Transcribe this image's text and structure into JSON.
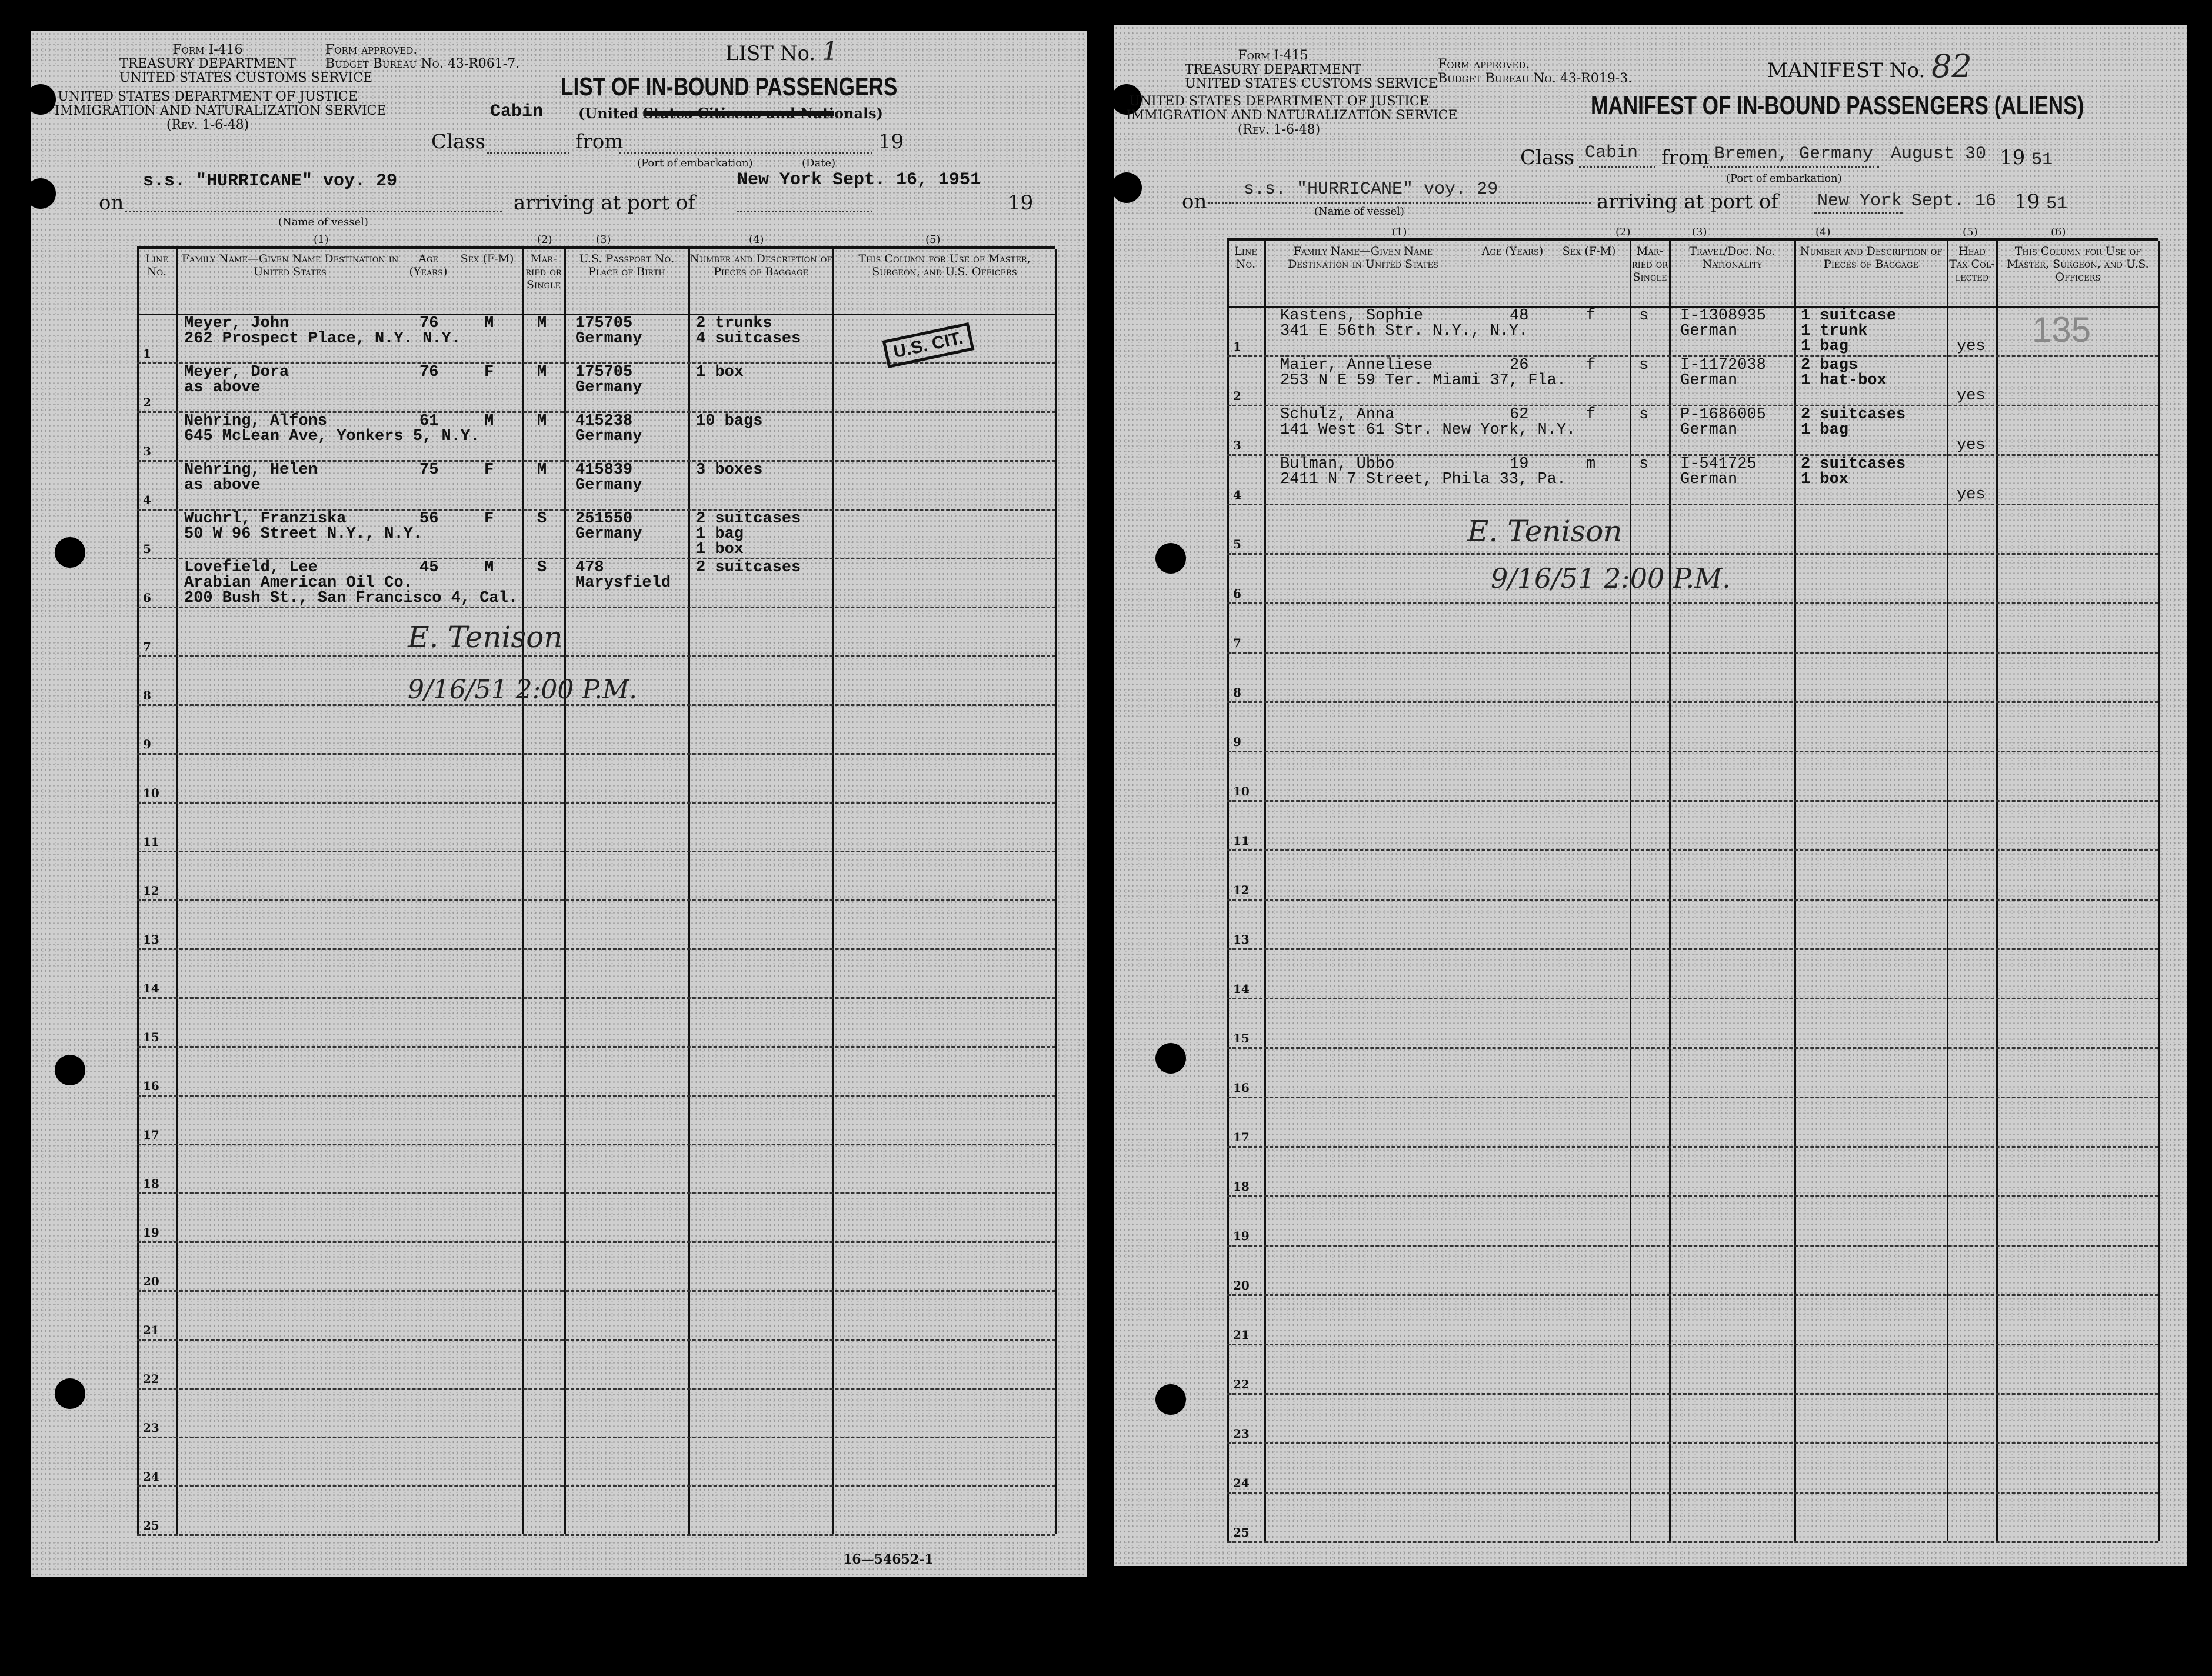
{
  "left": {
    "form_no": "Form I-416",
    "dept1": "TREASURY DEPARTMENT",
    "dept2": "UNITED STATES CUSTOMS SERVICE",
    "dept3": "UNITED STATES DEPARTMENT OF JUSTICE",
    "dept4": "IMMIGRATION AND NATURALIZATION SERVICE",
    "rev": "(Rev. 1-6-48)",
    "approved": "Form approved.",
    "budget": "Budget Bureau No. 43-R061-7.",
    "list_label": "LIST No.",
    "list_no": "1",
    "title": "LIST OF IN-BOUND PASSENGERS",
    "subtitle_prefix": "(United ",
    "subtitle_struck": "States Citizens and Nati",
    "subtitle_suffix": "onals)",
    "class_value": "Cabin",
    "class_label": "Class",
    "from_label": "from",
    "port_embark_caption": "(Port of embarkation)",
    "date_caption": "(Date)",
    "year_prefix": "19",
    "on_label": "on",
    "vessel": "s.s. \"HURRICANE\" voy. 29",
    "vessel_caption": "(Name of vessel)",
    "arriving_label": "arriving at port of",
    "arrival_value": "New York  Sept. 16, 1951",
    "col_numbers": [
      "(1)",
      "(2)",
      "(3)",
      "(4)",
      "(5)"
    ],
    "headers": {
      "line": "Line No.",
      "name": "Family Name—Given Name Destination in United States",
      "age": "Age (Years)",
      "sex": "Sex (F-M)",
      "married": "Mar-ried or Single",
      "passport": "U.S. Passport No. Place of Birth",
      "baggage": "Number and Description of Pieces of Baggage",
      "officers": "This Column for Use of Master, Surgeon, and U.S. Officers"
    },
    "passengers": [
      {
        "name": "Meyer, John",
        "dest": "262 Prospect Place, N.Y. N.Y.",
        "age": "76",
        "sex": "M",
        "ms": "M",
        "passport": "175705",
        "birth": "Germany",
        "baggage": "2 trunks\n4 suitcases"
      },
      {
        "name": "Meyer, Dora",
        "dest": "as above",
        "age": "76",
        "sex": "F",
        "ms": "M",
        "passport": "175705",
        "birth": "Germany",
        "baggage": "1 box"
      },
      {
        "name": "Nehring, Alfons",
        "dest": "645 McLean Ave, Yonkers 5, N.Y.",
        "age": "61",
        "sex": "M",
        "ms": "M",
        "passport": "415238",
        "birth": "Germany",
        "baggage": "10 bags"
      },
      {
        "name": "Nehring, Helen",
        "dest": "as above",
        "age": "75",
        "sex": "F",
        "ms": "M",
        "passport": "415839",
        "birth": "Germany",
        "baggage": "3 boxes"
      },
      {
        "name": "Wuchrl, Franziska",
        "dest": "50 W 96 Street N.Y., N.Y.",
        "age": "56",
        "sex": "F",
        "ms": "S",
        "passport": "251550",
        "birth": "Germany",
        "baggage": "2 suitcases\n1 bag\n1 box"
      },
      {
        "name": "Lovefield, Lee",
        "dest": "Arabian American Oil Co.\n200 Bush St., San Francisco 4, Cal.",
        "age": "45",
        "sex": "M",
        "ms": "S",
        "passport": "478",
        "birth": "Marysfield",
        "baggage": "2 suitcases"
      }
    ],
    "stamp": "U.S. CIT.",
    "signature": "E. Tenison",
    "timestamp": "9/16/51  2:00 P.M.",
    "footer_code": "16—54652-1"
  },
  "right": {
    "form_no": "Form I-415",
    "dept1": "TREASURY DEPARTMENT",
    "dept2": "UNITED STATES CUSTOMS SERVICE",
    "dept3": "UNITED STATES DEPARTMENT OF JUSTICE",
    "dept4": "IMMIGRATION AND NATURALIZATION SERVICE",
    "rev": "(Rev. 1-6-48)",
    "approved": "Form approved.",
    "budget": "Budget Bureau No. 43-R019-3.",
    "manifest_label": "MANIFEST No.",
    "manifest_no": "82",
    "title": "MANIFEST OF IN-BOUND PASSENGERS (ALIENS)",
    "class_label": "Class",
    "class_value": "Cabin",
    "from_label": "from",
    "from_value": "Bremen, Germany",
    "depart_date": "August 30",
    "year_prefix": "19",
    "depart_year": "51",
    "port_embark_caption": "(Port of embarkation)",
    "on_label": "on",
    "vessel": "s.s. \"HURRICANE\" voy. 29",
    "vessel_caption": "(Name of vessel)",
    "arriving_label": "arriving at port of",
    "arrival_port": "New York",
    "arrival_date": "Sept. 16",
    "arrival_year": "51",
    "col_numbers": [
      "(1)",
      "(2)",
      "(3)",
      "(4)",
      "(5)",
      "(6)"
    ],
    "headers": {
      "line": "Line No.",
      "name": "Family Name—Given Name Destination in United States",
      "age": "Age (Years)",
      "sex": "Sex (F-M)",
      "married": "Mar-ried or Single",
      "travel": "Travel/Doc. No. Nationality",
      "baggage": "Number and Description of Pieces of Baggage",
      "headtax": "Head Tax Col-lected",
      "officers": "This Column for Use of Master, Surgeon, and U.S. Officers"
    },
    "passengers": [
      {
        "name": "Kastens, Sophie",
        "dest": "341 E 56th Str. N.Y., N.Y.",
        "age": "48",
        "sex": "f",
        "ms": "s",
        "doc": "I-1308935",
        "nat": "German",
        "baggage": "1 suitcase\n1 trunk\n1 bag",
        "tax": "yes"
      },
      {
        "name": "Maier, Anneliese",
        "dest": "253 N E 59 Ter. Miami 37, Fla.",
        "age": "26",
        "sex": "f",
        "ms": "s",
        "doc": "I-1172038",
        "nat": "German",
        "baggage": "2 bags\n1 hat-box",
        "tax": "yes"
      },
      {
        "name": "Schulz, Anna",
        "dest": "141 West 61 Str. New York, N.Y.",
        "age": "62",
        "sex": "f",
        "ms": "s",
        "doc": "P-1686005",
        "nat": "German",
        "baggage": "2 suitcases\n1 bag",
        "tax": "yes"
      },
      {
        "name": "Bulman, Ubbo",
        "dest": "2411 N 7 Street, Phila 33, Pa.",
        "age": "19",
        "sex": "m",
        "ms": "s",
        "doc": "I-541725",
        "nat": "German",
        "baggage": "2 suitcases\n1 box",
        "tax": "yes"
      }
    ],
    "officer_stamp": "135",
    "signature": "E. Tenison",
    "timestamp": "9/16/51  2:00 P.M."
  },
  "line_numbers": [
    "1",
    "2",
    "3",
    "4",
    "5",
    "6",
    "7",
    "8",
    "9",
    "10",
    "11",
    "12",
    "13",
    "14",
    "15",
    "16",
    "17",
    "18",
    "19",
    "20",
    "21",
    "22",
    "23",
    "24",
    "25"
  ]
}
